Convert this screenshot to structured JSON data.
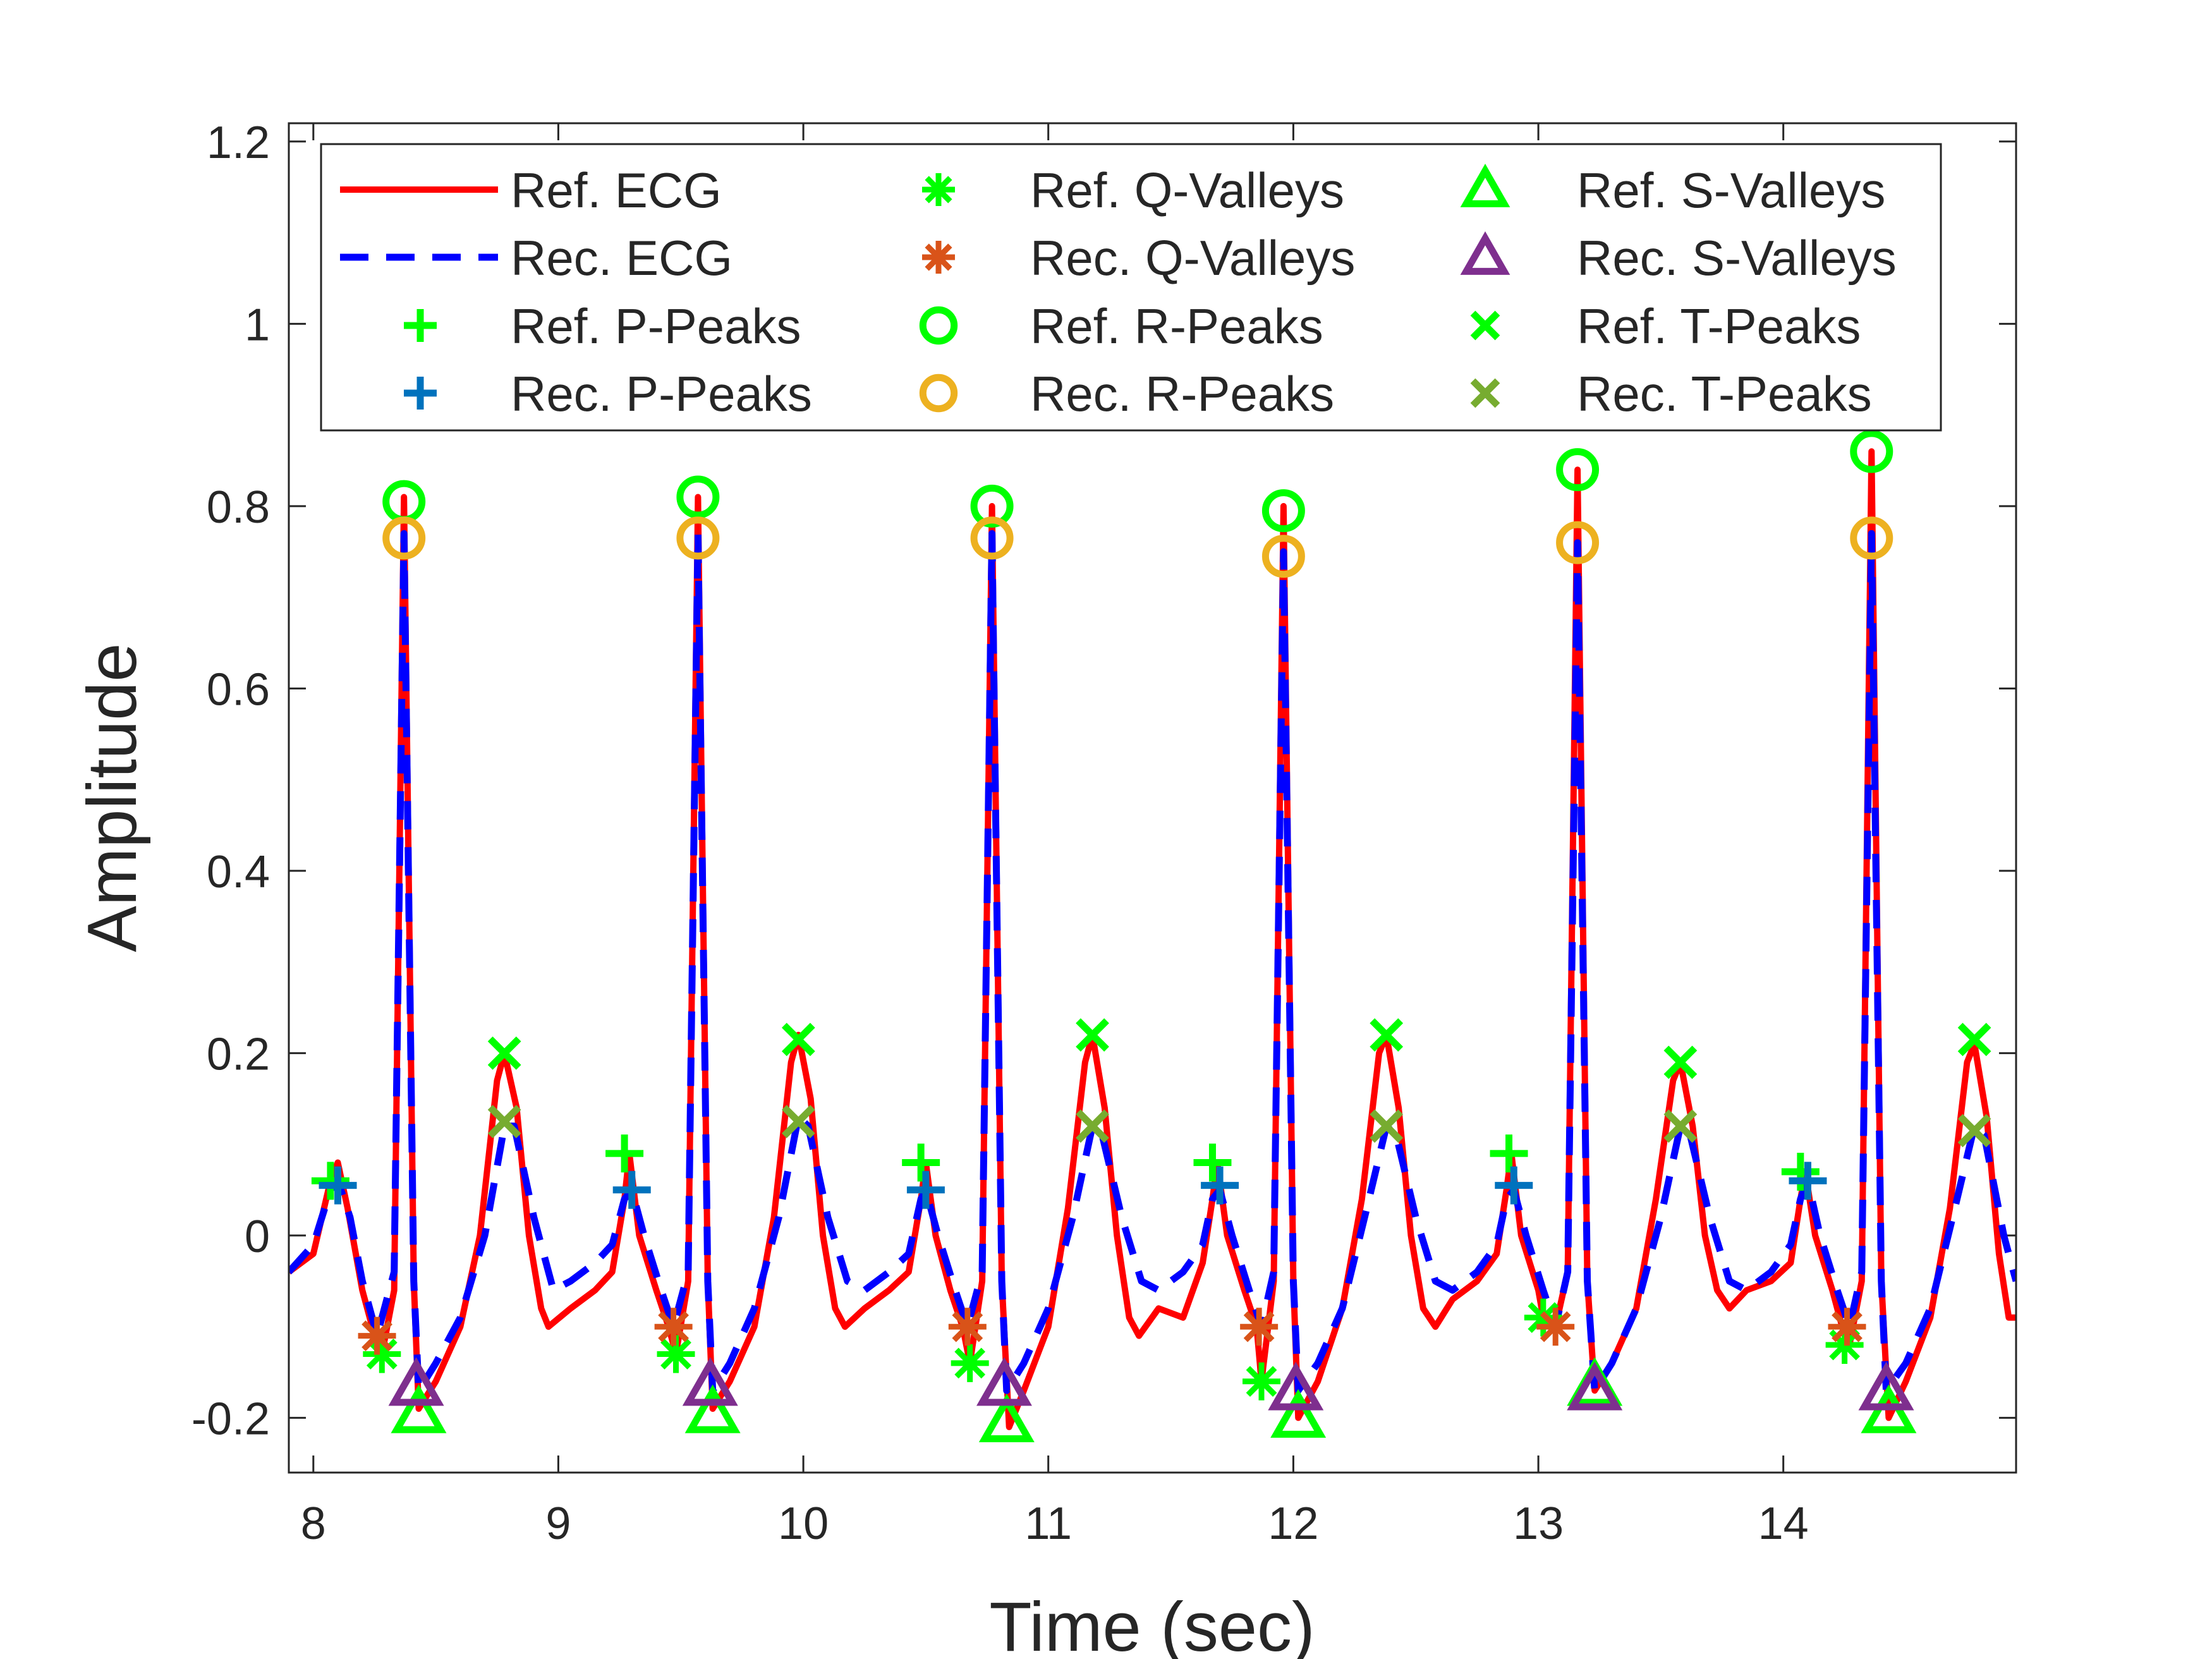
{
  "chart_data": {
    "type": "line",
    "title": "",
    "xlabel": "Time (sec)",
    "ylabel": "Amplitude",
    "xlim": [
      7.9,
      14.95
    ],
    "ylim": [
      -0.26,
      1.22
    ],
    "x_ticks": [
      8,
      9,
      10,
      11,
      12,
      13,
      14
    ],
    "x_tick_labels": [
      "8",
      "9",
      "10",
      "11",
      "12",
      "13",
      "14"
    ],
    "y_ticks": [
      -0.2,
      0,
      0.2,
      0.4,
      0.6,
      0.8,
      1,
      1.2
    ],
    "y_tick_labels": [
      "-0.2",
      "0",
      "0.2",
      "0.4",
      "0.6",
      "0.8",
      "1",
      "1.2"
    ],
    "grid": false,
    "legend_position": "top",
    "legend_columns": 3,
    "series": [
      {
        "name": "Ref. ECG",
        "kind": "line",
        "color": "#ff0000",
        "dash": "solid",
        "points": [
          [
            7.9,
            -0.04
          ],
          [
            8.0,
            -0.02
          ],
          [
            8.07,
            0.06
          ],
          [
            8.1,
            0.08
          ],
          [
            8.14,
            0.03
          ],
          [
            8.2,
            -0.06
          ],
          [
            8.25,
            -0.11
          ],
          [
            8.28,
            -0.13
          ],
          [
            8.33,
            -0.06
          ],
          [
            8.37,
            0.81
          ],
          [
            8.41,
            -0.05
          ],
          [
            8.43,
            -0.19
          ],
          [
            8.5,
            -0.16
          ],
          [
            8.6,
            -0.1
          ],
          [
            8.68,
            0.0
          ],
          [
            8.75,
            0.17
          ],
          [
            8.78,
            0.2
          ],
          [
            8.83,
            0.14
          ],
          [
            8.88,
            0.0
          ],
          [
            8.93,
            -0.08
          ],
          [
            8.96,
            -0.1
          ],
          [
            9.05,
            -0.08
          ],
          [
            9.15,
            -0.06
          ],
          [
            9.22,
            -0.04
          ],
          [
            9.27,
            0.04
          ],
          [
            9.29,
            0.09
          ],
          [
            9.33,
            0.0
          ],
          [
            9.4,
            -0.06
          ],
          [
            9.45,
            -0.1
          ],
          [
            9.48,
            -0.13
          ],
          [
            9.53,
            -0.05
          ],
          [
            9.57,
            0.81
          ],
          [
            9.61,
            -0.05
          ],
          [
            9.63,
            -0.19
          ],
          [
            9.7,
            -0.16
          ],
          [
            9.8,
            -0.1
          ],
          [
            9.88,
            0.02
          ],
          [
            9.95,
            0.19
          ],
          [
            9.98,
            0.22
          ],
          [
            10.03,
            0.15
          ],
          [
            10.08,
            0.0
          ],
          [
            10.13,
            -0.08
          ],
          [
            10.17,
            -0.1
          ],
          [
            10.25,
            -0.08
          ],
          [
            10.35,
            -0.06
          ],
          [
            10.43,
            -0.04
          ],
          [
            10.48,
            0.04
          ],
          [
            10.5,
            0.08
          ],
          [
            10.54,
            0.0
          ],
          [
            10.6,
            -0.06
          ],
          [
            10.65,
            -0.1
          ],
          [
            10.68,
            -0.14
          ],
          [
            10.73,
            -0.05
          ],
          [
            10.77,
            0.8
          ],
          [
            10.81,
            -0.05
          ],
          [
            10.84,
            -0.21
          ],
          [
            10.9,
            -0.17
          ],
          [
            11.0,
            -0.1
          ],
          [
            11.08,
            0.03
          ],
          [
            11.15,
            0.19
          ],
          [
            11.18,
            0.22
          ],
          [
            11.23,
            0.14
          ],
          [
            11.28,
            0.0
          ],
          [
            11.33,
            -0.09
          ],
          [
            11.37,
            -0.11
          ],
          [
            11.45,
            -0.08
          ],
          [
            11.55,
            -0.09
          ],
          [
            11.63,
            -0.03
          ],
          [
            11.67,
            0.04
          ],
          [
            11.69,
            0.08
          ],
          [
            11.73,
            0.0
          ],
          [
            11.8,
            -0.06
          ],
          [
            11.85,
            -0.1
          ],
          [
            11.87,
            -0.16
          ],
          [
            11.92,
            -0.05
          ],
          [
            11.96,
            0.8
          ],
          [
            12.0,
            -0.05
          ],
          [
            12.02,
            -0.2
          ],
          [
            12.1,
            -0.16
          ],
          [
            12.2,
            -0.08
          ],
          [
            12.28,
            0.04
          ],
          [
            12.35,
            0.2
          ],
          [
            12.38,
            0.22
          ],
          [
            12.43,
            0.14
          ],
          [
            12.48,
            0.0
          ],
          [
            12.53,
            -0.08
          ],
          [
            12.58,
            -0.1
          ],
          [
            12.65,
            -0.07
          ],
          [
            12.75,
            -0.05
          ],
          [
            12.83,
            -0.02
          ],
          [
            12.87,
            0.05
          ],
          [
            12.89,
            0.09
          ],
          [
            12.93,
            0.0
          ],
          [
            13.0,
            -0.06
          ],
          [
            13.02,
            -0.09
          ],
          [
            13.07,
            -0.1
          ],
          [
            13.12,
            -0.04
          ],
          [
            13.16,
            0.84
          ],
          [
            13.2,
            -0.05
          ],
          [
            13.23,
            -0.17
          ],
          [
            13.3,
            -0.14
          ],
          [
            13.4,
            -0.08
          ],
          [
            13.48,
            0.04
          ],
          [
            13.55,
            0.17
          ],
          [
            13.58,
            0.19
          ],
          [
            13.63,
            0.12
          ],
          [
            13.68,
            0.0
          ],
          [
            13.73,
            -0.06
          ],
          [
            13.78,
            -0.08
          ],
          [
            13.85,
            -0.06
          ],
          [
            13.95,
            -0.05
          ],
          [
            14.03,
            -0.03
          ],
          [
            14.07,
            0.04
          ],
          [
            14.09,
            0.07
          ],
          [
            14.13,
            0.0
          ],
          [
            14.2,
            -0.06
          ],
          [
            14.24,
            -0.1
          ],
          [
            14.27,
            -0.12
          ],
          [
            14.32,
            -0.05
          ],
          [
            14.36,
            0.86
          ],
          [
            14.4,
            -0.05
          ],
          [
            14.43,
            -0.2
          ],
          [
            14.5,
            -0.16
          ],
          [
            14.6,
            -0.09
          ],
          [
            14.68,
            0.03
          ],
          [
            14.75,
            0.19
          ],
          [
            14.78,
            0.21
          ],
          [
            14.83,
            0.13
          ],
          [
            14.88,
            -0.02
          ],
          [
            14.92,
            -0.09
          ],
          [
            14.95,
            -0.09
          ]
        ]
      },
      {
        "name": "Rec. ECG",
        "kind": "line",
        "color": "#0000ff",
        "dash": "dashed",
        "points": [
          [
            7.9,
            -0.04
          ],
          [
            8.0,
            -0.01
          ],
          [
            8.07,
            0.05
          ],
          [
            8.1,
            0.06
          ],
          [
            8.15,
            0.02
          ],
          [
            8.2,
            -0.05
          ],
          [
            8.26,
            -0.11
          ],
          [
            8.33,
            -0.04
          ],
          [
            8.37,
            0.77
          ],
          [
            8.41,
            -0.05
          ],
          [
            8.43,
            -0.17
          ],
          [
            8.5,
            -0.14
          ],
          [
            8.6,
            -0.09
          ],
          [
            8.7,
            0.0
          ],
          [
            8.78,
            0.12
          ],
          [
            8.82,
            0.12
          ],
          [
            8.9,
            0.02
          ],
          [
            8.98,
            -0.06
          ],
          [
            9.05,
            -0.05
          ],
          [
            9.15,
            -0.03
          ],
          [
            9.22,
            -0.01
          ],
          [
            9.27,
            0.04
          ],
          [
            9.3,
            0.05
          ],
          [
            9.35,
            0.0
          ],
          [
            9.42,
            -0.06
          ],
          [
            9.47,
            -0.1
          ],
          [
            9.53,
            -0.04
          ],
          [
            9.57,
            0.77
          ],
          [
            9.61,
            -0.05
          ],
          [
            9.63,
            -0.17
          ],
          [
            9.7,
            -0.14
          ],
          [
            9.8,
            -0.08
          ],
          [
            9.9,
            0.02
          ],
          [
            9.98,
            0.13
          ],
          [
            10.02,
            0.12
          ],
          [
            10.1,
            0.02
          ],
          [
            10.18,
            -0.05
          ],
          [
            10.25,
            -0.06
          ],
          [
            10.35,
            -0.04
          ],
          [
            10.43,
            -0.02
          ],
          [
            10.48,
            0.04
          ],
          [
            10.5,
            0.05
          ],
          [
            10.55,
            0.0
          ],
          [
            10.62,
            -0.06
          ],
          [
            10.67,
            -0.1
          ],
          [
            10.73,
            -0.04
          ],
          [
            10.77,
            0.77
          ],
          [
            10.81,
            -0.05
          ],
          [
            10.83,
            -0.17
          ],
          [
            10.9,
            -0.14
          ],
          [
            11.0,
            -0.08
          ],
          [
            11.1,
            0.02
          ],
          [
            11.18,
            0.12
          ],
          [
            11.22,
            0.11
          ],
          [
            11.3,
            0.02
          ],
          [
            11.38,
            -0.05
          ],
          [
            11.45,
            -0.06
          ],
          [
            11.55,
            -0.04
          ],
          [
            11.63,
            -0.01
          ],
          [
            11.67,
            0.04
          ],
          [
            11.7,
            0.05
          ],
          [
            11.75,
            0.0
          ],
          [
            11.82,
            -0.06
          ],
          [
            11.87,
            -0.1
          ],
          [
            11.92,
            -0.04
          ],
          [
            11.96,
            0.75
          ],
          [
            12.0,
            -0.05
          ],
          [
            12.02,
            -0.17
          ],
          [
            12.1,
            -0.14
          ],
          [
            12.2,
            -0.08
          ],
          [
            12.3,
            0.03
          ],
          [
            12.38,
            0.12
          ],
          [
            12.42,
            0.11
          ],
          [
            12.5,
            0.02
          ],
          [
            12.58,
            -0.05
          ],
          [
            12.65,
            -0.06
          ],
          [
            12.75,
            -0.04
          ],
          [
            12.83,
            -0.01
          ],
          [
            12.87,
            0.04
          ],
          [
            12.9,
            0.05
          ],
          [
            12.95,
            0.0
          ],
          [
            13.02,
            -0.06
          ],
          [
            13.07,
            -0.1
          ],
          [
            13.12,
            -0.04
          ],
          [
            13.16,
            0.76
          ],
          [
            13.2,
            -0.05
          ],
          [
            13.23,
            -0.17
          ],
          [
            13.3,
            -0.14
          ],
          [
            13.4,
            -0.08
          ],
          [
            13.5,
            0.02
          ],
          [
            13.58,
            0.12
          ],
          [
            13.62,
            0.11
          ],
          [
            13.7,
            0.02
          ],
          [
            13.78,
            -0.05
          ],
          [
            13.85,
            -0.06
          ],
          [
            13.95,
            -0.04
          ],
          [
            14.03,
            -0.01
          ],
          [
            14.07,
            0.04
          ],
          [
            14.1,
            0.06
          ],
          [
            14.15,
            0.0
          ],
          [
            14.22,
            -0.06
          ],
          [
            14.27,
            -0.1
          ],
          [
            14.32,
            -0.04
          ],
          [
            14.36,
            0.77
          ],
          [
            14.4,
            -0.05
          ],
          [
            14.42,
            -0.17
          ],
          [
            14.5,
            -0.14
          ],
          [
            14.6,
            -0.08
          ],
          [
            14.7,
            0.03
          ],
          [
            14.78,
            0.12
          ],
          [
            14.82,
            0.11
          ],
          [
            14.9,
            0.0
          ],
          [
            14.95,
            -0.05
          ]
        ]
      },
      {
        "name": "Ref. P-Peaks",
        "kind": "marker",
        "marker": "plus",
        "color": "#00ff00",
        "x": [
          8.07,
          9.27,
          10.48,
          11.67,
          12.88,
          14.07
        ],
        "y": [
          0.06,
          0.09,
          0.08,
          0.08,
          0.09,
          0.07
        ]
      },
      {
        "name": "Rec. P-Peaks",
        "kind": "marker",
        "marker": "plus",
        "color": "#0072bd",
        "x": [
          8.1,
          9.3,
          10.5,
          11.7,
          12.9,
          14.1
        ],
        "y": [
          0.055,
          0.05,
          0.05,
          0.055,
          0.055,
          0.06
        ]
      },
      {
        "name": "Ref. Q-Valleys",
        "kind": "marker",
        "marker": "asterisk",
        "color": "#00ff00",
        "x": [
          8.28,
          9.48,
          10.68,
          11.87,
          13.02,
          14.25
        ],
        "y": [
          -0.13,
          -0.13,
          -0.14,
          -0.16,
          -0.09,
          -0.12
        ]
      },
      {
        "name": "Rec. Q-Valleys",
        "kind": "marker",
        "marker": "asterisk",
        "color": "#d95319",
        "x": [
          8.26,
          9.47,
          10.67,
          11.86,
          13.07,
          14.26
        ],
        "y": [
          -0.11,
          -0.1,
          -0.1,
          -0.1,
          -0.1,
          -0.1
        ]
      },
      {
        "name": "Ref. R-Peaks",
        "kind": "marker",
        "marker": "circle",
        "color": "#00ff00",
        "x": [
          8.37,
          9.57,
          10.77,
          11.96,
          13.16,
          14.36
        ],
        "y": [
          0.805,
          0.81,
          0.8,
          0.795,
          0.84,
          0.86
        ]
      },
      {
        "name": "Rec. R-Peaks",
        "kind": "marker",
        "marker": "circle",
        "color": "#edb120",
        "x": [
          8.37,
          9.57,
          10.77,
          11.96,
          13.16,
          14.36
        ],
        "y": [
          0.765,
          0.765,
          0.765,
          0.745,
          0.76,
          0.765
        ]
      },
      {
        "name": "Ref. S-Valleys",
        "kind": "marker",
        "marker": "triangle",
        "color": "#00ff00",
        "x": [
          8.43,
          9.63,
          10.83,
          12.02,
          13.23,
          14.43
        ],
        "y": [
          -0.195,
          -0.195,
          -0.205,
          -0.2,
          -0.165,
          -0.195
        ]
      },
      {
        "name": "Rec. S-Valleys",
        "kind": "marker",
        "marker": "triangle",
        "color": "#7e2f8e",
        "x": [
          8.42,
          9.62,
          10.82,
          12.01,
          13.23,
          14.42
        ],
        "y": [
          -0.165,
          -0.165,
          -0.165,
          -0.17,
          -0.17,
          -0.17
        ]
      },
      {
        "name": "Ref. T-Peaks",
        "kind": "marker",
        "marker": "x",
        "color": "#00ff00",
        "x": [
          8.78,
          9.98,
          11.18,
          12.38,
          13.58,
          14.78
        ],
        "y": [
          0.2,
          0.215,
          0.22,
          0.22,
          0.19,
          0.215
        ]
      },
      {
        "name": "Rec. T-Peaks",
        "kind": "marker",
        "marker": "x",
        "color": "#77ac30",
        "x": [
          8.78,
          9.98,
          11.18,
          12.38,
          13.58,
          14.78
        ],
        "y": [
          0.125,
          0.125,
          0.12,
          0.12,
          0.12,
          0.115
        ]
      }
    ]
  }
}
